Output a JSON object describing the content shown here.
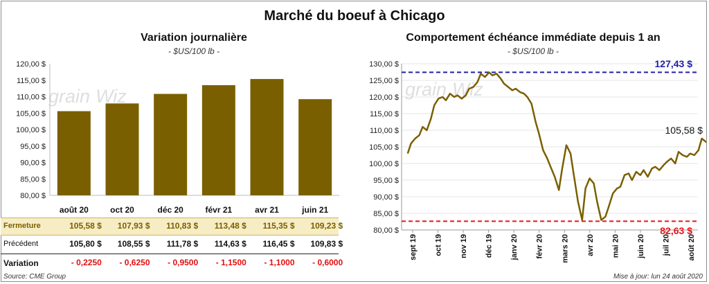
{
  "title": "Marché du boeuf à Chicago",
  "left_panel": {
    "title": "Variation  journalière",
    "unit": "- $US/100 lb -",
    "table": {
      "rows": [
        {
          "label": "Fermeture",
          "values": [
            "105,58",
            "107,93",
            "110,83",
            "113,48",
            "115,35",
            "109,23"
          ]
        },
        {
          "label": "Précédent",
          "values": [
            "105,80",
            "108,55",
            "111,78",
            "114,63",
            "116,45",
            "109,83"
          ]
        },
        {
          "label": "Variation",
          "values": [
            "- 0,2250",
            "- 0,6250",
            "- 0,9500",
            "- 1,1500",
            "- 1,1000",
            "- 0,6000"
          ]
        }
      ],
      "currency_symbol": "$"
    }
  },
  "right_panel": {
    "title": "Comportement  échéance immédiate depuis 1 an",
    "unit": "- $US/100 lb -",
    "max_label": "127,43 $",
    "min_label": "82,63 $",
    "last_label": "105,58 $"
  },
  "watermark": {
    "left": "grain",
    "right": "Wiz"
  },
  "source": "Source: CME Group",
  "updated": "Mise à jour: lun 24 août 2020",
  "colors": {
    "bar": "#7a5f00",
    "line": "#7a5f00",
    "max_line": "#1f1fa8",
    "min_line": "#e8141a",
    "fermeture_bg": "#f7edc4",
    "negative": "#e01010"
  },
  "chart_data": [
    {
      "type": "bar",
      "categories": [
        "août 20",
        "oct 20",
        "déc 20",
        "févr 21",
        "avr 21",
        "juin 21"
      ],
      "values": [
        105.58,
        107.93,
        110.83,
        113.48,
        115.35,
        109.23
      ],
      "title": "Variation  journalière",
      "ylim": [
        80,
        120
      ],
      "yticks": [
        "80,00 $",
        "85,00 $",
        "90,00 $",
        "95,00 $",
        "100,00 $",
        "105,00 $",
        "110,00 $",
        "115,00 $",
        "120,00 $"
      ],
      "grid": false
    },
    {
      "type": "line",
      "title": "Comportement  échéance immédiate depuis 1 an",
      "ylim": [
        80,
        130
      ],
      "yticks": [
        "80,00 $",
        "85,00 $",
        "90,00 $",
        "95,00 $",
        "100,00 $",
        "105,00 $",
        "110,00 $",
        "115,00 $",
        "120,00 $",
        "125,00 $",
        "130,00 $"
      ],
      "xticks": [
        "sept 19",
        "oct 19",
        "nov 19",
        "déc 19",
        "janv 20",
        "févr 20",
        "mars 20",
        "avr 20",
        "mai 20",
        "juin 20",
        "juil 20",
        "août 20"
      ],
      "x": [
        "2019-08-26",
        "2019-08-30",
        "2019-09-04",
        "2019-09-09",
        "2019-09-13",
        "2019-09-18",
        "2019-09-23",
        "2019-09-27",
        "2019-10-02",
        "2019-10-07",
        "2019-10-11",
        "2019-10-16",
        "2019-10-21",
        "2019-10-25",
        "2019-10-30",
        "2019-11-04",
        "2019-11-08",
        "2019-11-13",
        "2019-11-18",
        "2019-11-22",
        "2019-11-27",
        "2019-12-02",
        "2019-12-06",
        "2019-12-11",
        "2019-12-16",
        "2019-12-20",
        "2019-12-25",
        "2019-12-30",
        "2020-01-03",
        "2020-01-08",
        "2020-01-13",
        "2020-01-17",
        "2020-01-22",
        "2020-01-27",
        "2020-01-31",
        "2020-02-05",
        "2020-02-10",
        "2020-02-14",
        "2020-02-19",
        "2020-02-24",
        "2020-02-28",
        "2020-03-04",
        "2020-03-09",
        "2020-03-13",
        "2020-03-18",
        "2020-03-23",
        "2020-03-27",
        "2020-04-01",
        "2020-04-06",
        "2020-04-10",
        "2020-04-15",
        "2020-04-20",
        "2020-04-24",
        "2020-04-29",
        "2020-05-04",
        "2020-05-08",
        "2020-05-13",
        "2020-05-18",
        "2020-05-22",
        "2020-05-27",
        "2020-06-01",
        "2020-06-05",
        "2020-06-10",
        "2020-06-15",
        "2020-06-19",
        "2020-06-24",
        "2020-06-29",
        "2020-07-03",
        "2020-07-08",
        "2020-07-13",
        "2020-07-17",
        "2020-07-22",
        "2020-07-27",
        "2020-07-31",
        "2020-08-05",
        "2020-08-10",
        "2020-08-14",
        "2020-08-19",
        "2020-08-24"
      ],
      "values": [
        103.0,
        106.0,
        107.5,
        108.5,
        111.0,
        110.0,
        113.5,
        117.5,
        119.5,
        120.0,
        119.0,
        121.0,
        120.0,
        120.5,
        119.5,
        120.5,
        122.5,
        123.0,
        124.5,
        127.0,
        126.0,
        127.4,
        126.5,
        127.0,
        125.5,
        124.0,
        123.0,
        122.0,
        122.5,
        121.5,
        121.0,
        120.0,
        118.0,
        112.5,
        109.0,
        104.0,
        101.5,
        99.0,
        96.0,
        92.0,
        98.5,
        105.5,
        103.0,
        96.5,
        88.5,
        83.0,
        92.5,
        95.5,
        94.0,
        88.5,
        83.0,
        84.0,
        87.0,
        91.0,
        92.5,
        93.0,
        96.5,
        97.0,
        95.0,
        97.5,
        96.5,
        98.0,
        96.0,
        98.5,
        99.0,
        98.0,
        99.5,
        100.5,
        101.5,
        100.0,
        103.5,
        102.5,
        102.0,
        103.0,
        102.5,
        104.0,
        107.5,
        106.5,
        105.58
      ],
      "hlines": [
        {
          "label": "127,43 $",
          "value": 127.43
        },
        {
          "label": "82,63 $",
          "value": 82.63
        }
      ]
    }
  ]
}
